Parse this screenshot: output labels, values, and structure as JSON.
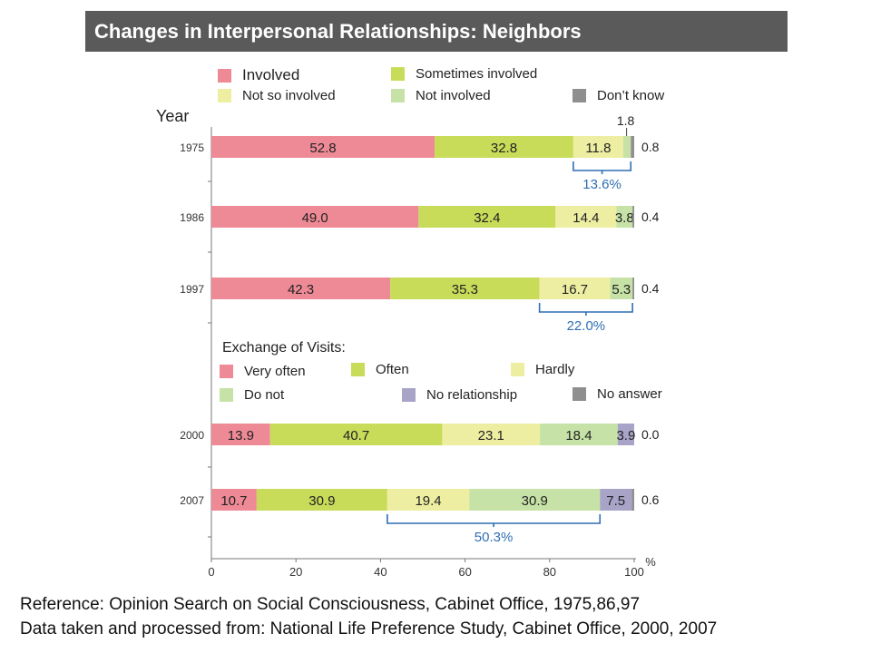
{
  "title": "Changes in Interpersonal Relationships: Neighbors",
  "year_label": "Year",
  "legend_top": [
    {
      "label": "Involved",
      "color": "#ee8a96"
    },
    {
      "label": "Sometimes involved",
      "color": "#c8dc5a"
    },
    {
      "label": "Not so involved",
      "color": "#eeeea2"
    },
    {
      "label": "Not involved",
      "color": "#c6e2a6"
    },
    {
      "label": "Don’t know",
      "color": "#8f8f8f"
    }
  ],
  "legend_visits_title": "Exchange of Visits:",
  "legend_bottom": [
    {
      "label": "Very often",
      "color": "#ee8a96"
    },
    {
      "label": "Often",
      "color": "#c8dc5a"
    },
    {
      "label": "Hardly",
      "color": "#eeeea2"
    },
    {
      "label": "Do not",
      "color": "#c6e2a6"
    },
    {
      "label": "No relationship",
      "color": "#a8a4c8"
    },
    {
      "label": "No answer",
      "color": "#8f8f8f"
    }
  ],
  "chart_data": {
    "type": "bar",
    "orientation": "horizontal",
    "stacked": true,
    "categories": [
      "1975",
      "1986",
      "1997",
      "2000",
      "2007"
    ],
    "series_top_period": [
      {
        "name": "Involved",
        "color": "#ee8a96",
        "values": [
          52.8,
          49.0,
          42.3
        ]
      },
      {
        "name": "Sometimes involved",
        "color": "#c8dc5a",
        "values": [
          32.8,
          32.4,
          35.3
        ]
      },
      {
        "name": "Not so involved",
        "color": "#eeeea2",
        "values": [
          11.8,
          14.4,
          16.7
        ]
      },
      {
        "name": "Not involved",
        "color": "#c6e2a6",
        "values": [
          1.8,
          3.8,
          5.3
        ]
      },
      {
        "name": "Don’t know",
        "color": "#8f8f8f",
        "values": [
          0.8,
          0.4,
          0.4
        ]
      }
    ],
    "series_bottom_period": [
      {
        "name": "Very often",
        "color": "#ee8a96",
        "values": [
          13.9,
          10.7
        ]
      },
      {
        "name": "Often",
        "color": "#c8dc5a",
        "values": [
          40.7,
          30.9
        ]
      },
      {
        "name": "Hardly",
        "color": "#eeeea2",
        "values": [
          23.1,
          19.4
        ]
      },
      {
        "name": "Do not",
        "color": "#c6e2a6",
        "values": [
          18.4,
          30.9
        ]
      },
      {
        "name": "No relationship",
        "color": "#a8a4c8",
        "values": [
          3.9,
          7.5
        ]
      },
      {
        "name": "No answer",
        "color": "#8f8f8f",
        "values": [
          0.0,
          0.6
        ]
      }
    ],
    "bar_labels": [
      [
        "52.8",
        "32.8",
        "11.8",
        "",
        ""
      ],
      [
        "49.0",
        "32.4",
        "14.4",
        "3.8",
        ""
      ],
      [
        "42.3",
        "35.3",
        "16.7",
        "5.3",
        ""
      ],
      [
        "13.9",
        "40.7",
        "23.1",
        "18.4",
        "3.9",
        ""
      ],
      [
        "10.7",
        "30.9",
        "19.4",
        "30.9",
        "7.5",
        ""
      ]
    ],
    "outside_labels": [
      "0.8",
      "0.4",
      "0.4",
      "0.0",
      "0.6"
    ],
    "top_callout": {
      "category": "1975",
      "text": "1.8"
    },
    "brackets": [
      {
        "category": "1975",
        "from": 85.6,
        "to": 99.2,
        "label": "13.6%"
      },
      {
        "category": "1997",
        "from": 77.6,
        "to": 99.6,
        "label": "22.0%"
      },
      {
        "category": "2007",
        "from": 41.6,
        "to": 91.9,
        "label": "50.3%"
      }
    ],
    "x_ticks": [
      "0",
      "20",
      "40",
      "60",
      "80",
      "100"
    ],
    "x_unit": "%",
    "xlim": [
      0,
      100
    ]
  },
  "references": [
    "Reference: Opinion Search on Social Consciousness, Cabinet Office, 1975,86,97",
    "Data taken and processed from: National Life Preference Study, Cabinet Office, 2000, 2007"
  ]
}
